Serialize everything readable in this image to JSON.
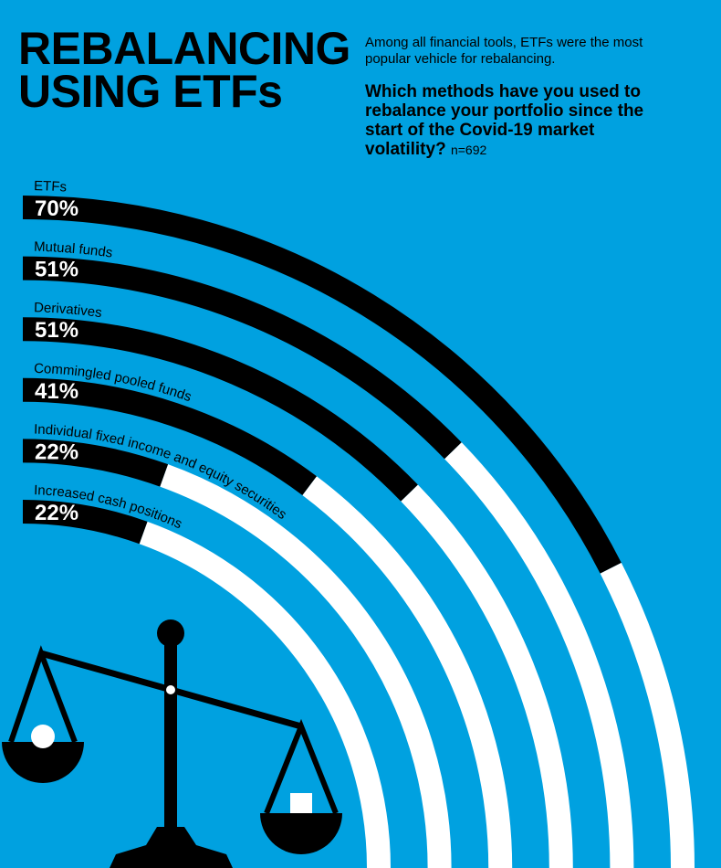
{
  "chart_data": {
    "type": "radial-bar",
    "title": "REBALANCING USING ETFs",
    "subtitle": "Among all financial tools, ETFs were the most popular vehicle for rebalancing.",
    "question": "Which methods have you used to rebalance your portfolio since the start of the Covid-19 market volatility?",
    "sample": "n=692",
    "categories": [
      "ETFs",
      "Mutual funds",
      "Derivatives",
      "Commingled pooled funds",
      "Individual fixed income and equity securities",
      "Increased cash positions"
    ],
    "values": [
      70,
      51,
      51,
      41,
      22,
      22
    ],
    "value_labels": [
      "70%",
      "51%",
      "51%",
      "41%",
      "22%",
      "22%"
    ],
    "ylim": [
      0,
      100
    ],
    "color": "#000000",
    "track_color": "#ffffff"
  }
}
